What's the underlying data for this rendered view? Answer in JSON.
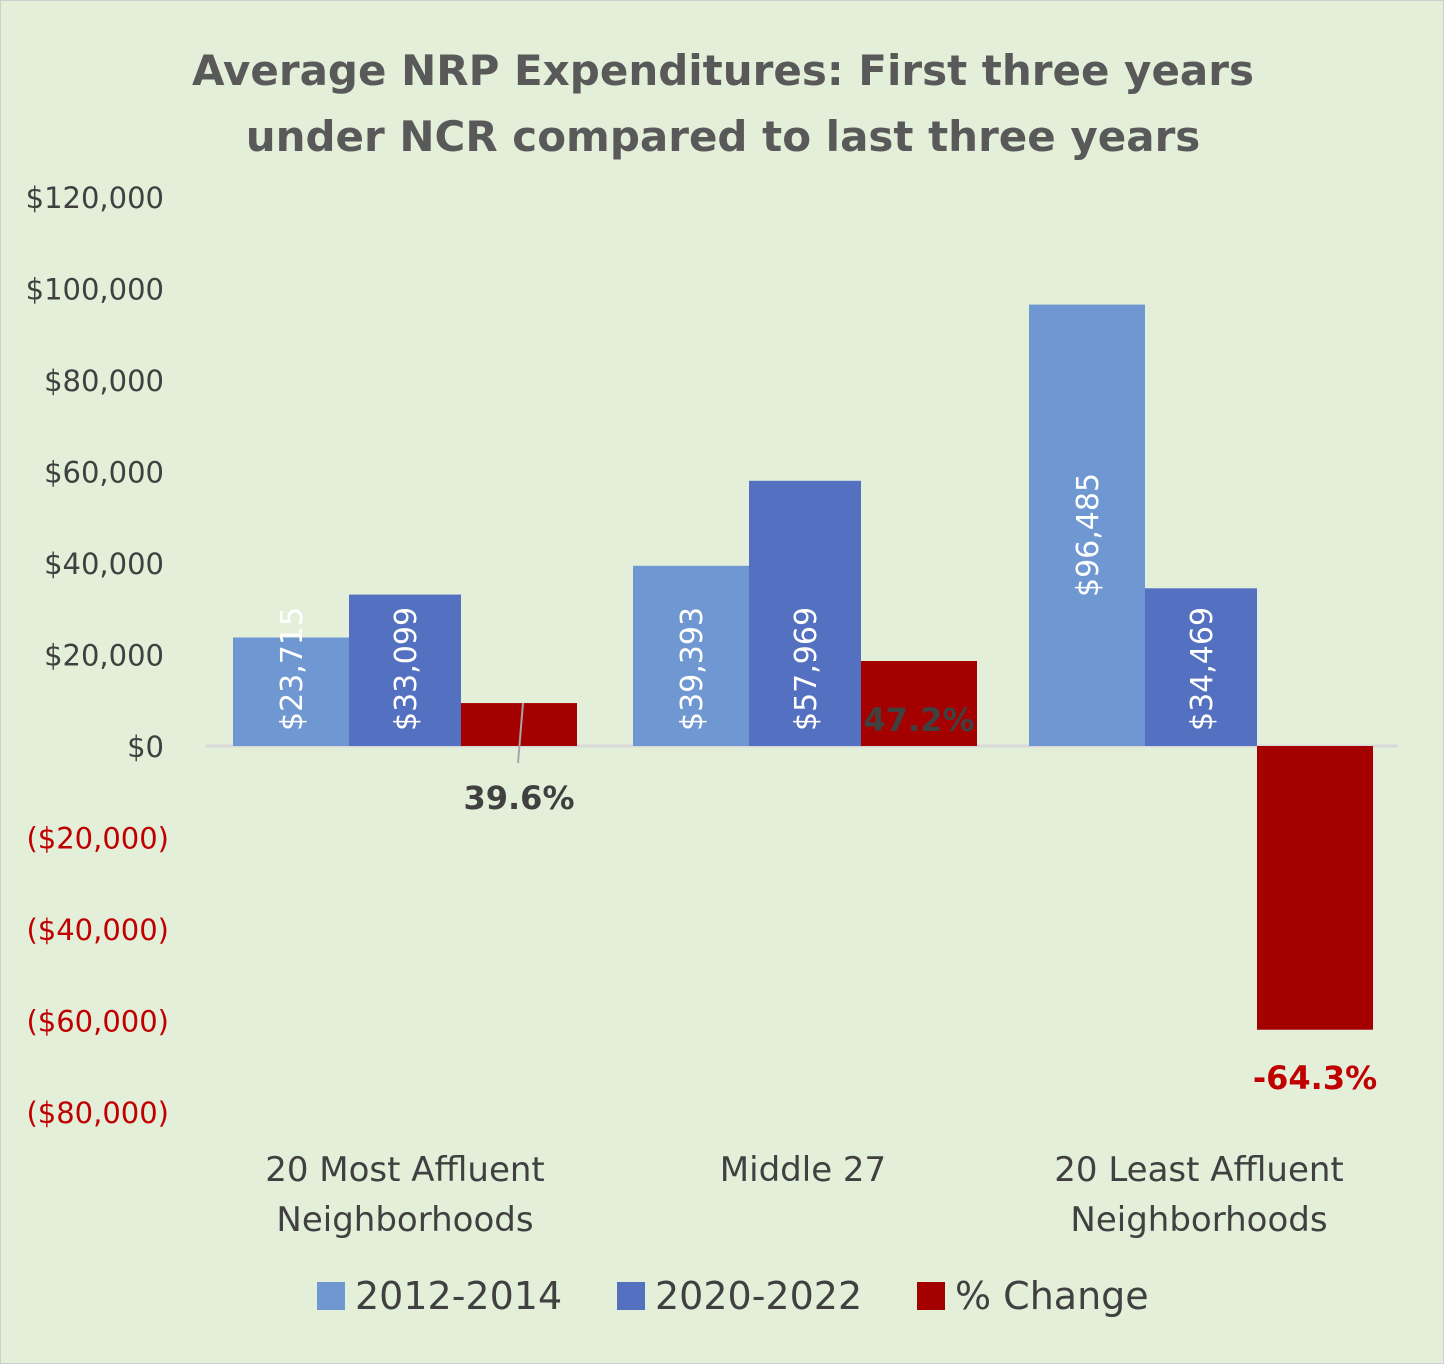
{
  "chart_data": {
    "type": "bar",
    "title": "Average NRP Expenditures: First three years under NCR compared to last three years",
    "title_lines": [
      "Average NRP Expenditures: First three years",
      "under NCR compared to last three years"
    ],
    "categories": [
      "20 Most Affluent Neighborhoods",
      "Middle 27",
      "20 Least Affluent Neighborhoods"
    ],
    "category_lines": [
      [
        "20 Most Affluent",
        "Neighborhoods"
      ],
      [
        "Middle 27"
      ],
      [
        "20 Least Affluent",
        "Neighborhoods"
      ]
    ],
    "series": [
      {
        "name": "2012-2014",
        "color": "#6F98D2",
        "values": [
          23715,
          39393,
          96485
        ],
        "labels": [
          "$23,715",
          "$39,393",
          "$96,485"
        ]
      },
      {
        "name": "2020-2022",
        "color": "#5470C0",
        "values": [
          33099,
          57969,
          34469
        ],
        "labels": [
          "$33,099",
          "$57,969",
          "$34,469"
        ]
      },
      {
        "name": "% Change",
        "color": "#A50000",
        "values": [
          9384,
          18576,
          -62016
        ],
        "labels": [
          "39.6%",
          "47.2%",
          "-64.3%"
        ]
      }
    ],
    "ylim": [
      -80000,
      120000
    ],
    "yticks": [
      120000,
      100000,
      80000,
      60000,
      40000,
      20000,
      0,
      -20000,
      -40000,
      -60000,
      -80000
    ],
    "ytick_labels": [
      "$120,000",
      "$100,000",
      "$80,000",
      "$60,000",
      "$40,000",
      "$20,000",
      "$0",
      "($20,000)",
      "($40,000)",
      "($60,000)",
      "($80,000)"
    ],
    "negative_tick_color": "#C00000",
    "grid": false,
    "legend_position": "bottom",
    "xlabel": "",
    "ylabel": ""
  }
}
